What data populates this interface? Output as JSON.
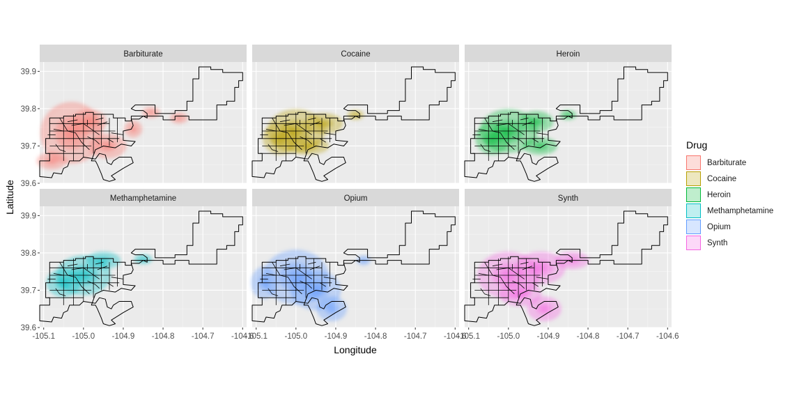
{
  "chart_data": {
    "type": "heatmap",
    "subtype": "faceted density map with boundary polygons",
    "xlabel": "Longitude",
    "ylabel": "Latitude",
    "xlim": [
      -105.11,
      -104.59
    ],
    "ylim": [
      39.6,
      39.925
    ],
    "x_ticks": [
      -105.1,
      -105.0,
      -104.9,
      -104.8,
      -104.7,
      -104.6
    ],
    "x_tick_labels": [
      "-105.1",
      "-105.0",
      "-104.9",
      "-104.8",
      "-104.7",
      "-104.6"
    ],
    "y_ticks": [
      39.6,
      39.7,
      39.8,
      39.9
    ],
    "y_tick_labels": [
      "39.6",
      "39.7",
      "39.8",
      "39.9"
    ],
    "grid": true,
    "legend": {
      "title": "Drug",
      "position": "right"
    },
    "facet_layout": {
      "rows": 2,
      "cols": 3
    },
    "series": [
      {
        "name": "Barbiturate",
        "color": "#F8766D",
        "blobs": [
          [
            -105.03,
            39.735,
            0.075,
            0.08
          ],
          [
            -104.985,
            39.765,
            0.04,
            0.03
          ],
          [
            -104.94,
            39.7,
            0.045,
            0.03
          ],
          [
            -105.08,
            39.66,
            0.035,
            0.02
          ],
          [
            -104.83,
            39.79,
            0.02,
            0.012
          ],
          [
            -104.76,
            39.775,
            0.02,
            0.012
          ],
          [
            -104.875,
            39.745,
            0.02,
            0.02
          ]
        ]
      },
      {
        "name": "Cocaine",
        "color": "#B79F00",
        "blobs": [
          [
            -105.0,
            39.74,
            0.07,
            0.055
          ],
          [
            -105.04,
            39.72,
            0.04,
            0.04
          ],
          [
            -104.93,
            39.76,
            0.045,
            0.025
          ],
          [
            -104.85,
            39.783,
            0.018,
            0.01
          ],
          [
            -104.97,
            39.7,
            0.05,
            0.02
          ]
        ]
      },
      {
        "name": "Heroin",
        "color": "#00BA38",
        "blobs": [
          [
            -105.0,
            39.74,
            0.07,
            0.055
          ],
          [
            -105.04,
            39.72,
            0.04,
            0.04
          ],
          [
            -104.93,
            39.765,
            0.04,
            0.025
          ],
          [
            -104.85,
            39.783,
            0.018,
            0.01
          ],
          [
            -104.92,
            39.7,
            0.04,
            0.02
          ]
        ]
      },
      {
        "name": "Methamphetamine",
        "color": "#00BFC4",
        "blobs": [
          [
            -105.0,
            39.74,
            0.065,
            0.05
          ],
          [
            -105.05,
            39.72,
            0.04,
            0.035
          ],
          [
            -104.95,
            39.78,
            0.04,
            0.02
          ],
          [
            -104.85,
            39.783,
            0.02,
            0.01
          ]
        ]
      },
      {
        "name": "Opium",
        "color": "#619CFF",
        "blobs": [
          [
            -105.0,
            39.735,
            0.08,
            0.07
          ],
          [
            -104.95,
            39.7,
            0.06,
            0.05
          ],
          [
            -104.91,
            39.65,
            0.035,
            0.03
          ],
          [
            -104.83,
            39.78,
            0.015,
            0.01
          ],
          [
            -105.08,
            39.72,
            0.03,
            0.04
          ]
        ]
      },
      {
        "name": "Synth",
        "color": "#F564E3",
        "blobs": [
          [
            -105.0,
            39.74,
            0.075,
            0.06
          ],
          [
            -104.92,
            39.76,
            0.06,
            0.04
          ],
          [
            -104.84,
            39.78,
            0.04,
            0.02
          ],
          [
            -104.91,
            39.65,
            0.04,
            0.03
          ],
          [
            -104.97,
            39.69,
            0.05,
            0.03
          ]
        ]
      }
    ]
  }
}
